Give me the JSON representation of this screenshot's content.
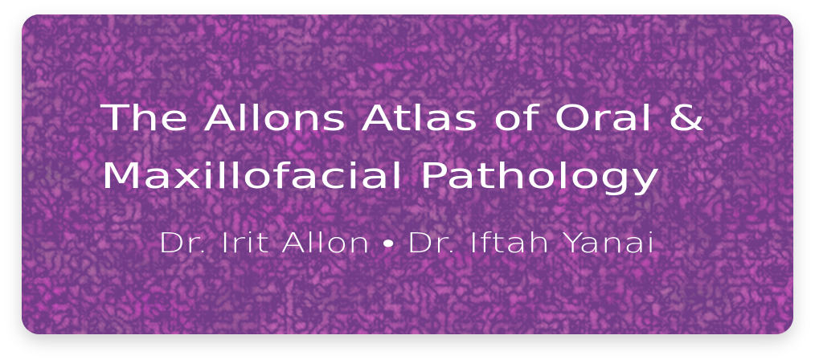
{
  "banner": {
    "title_lines": [
      "The Allons Atlas of Oral &",
      "Maxillofacial Pathology"
    ],
    "authors": "Dr. Irit Allon • Dr. Iftah Yanai"
  }
}
